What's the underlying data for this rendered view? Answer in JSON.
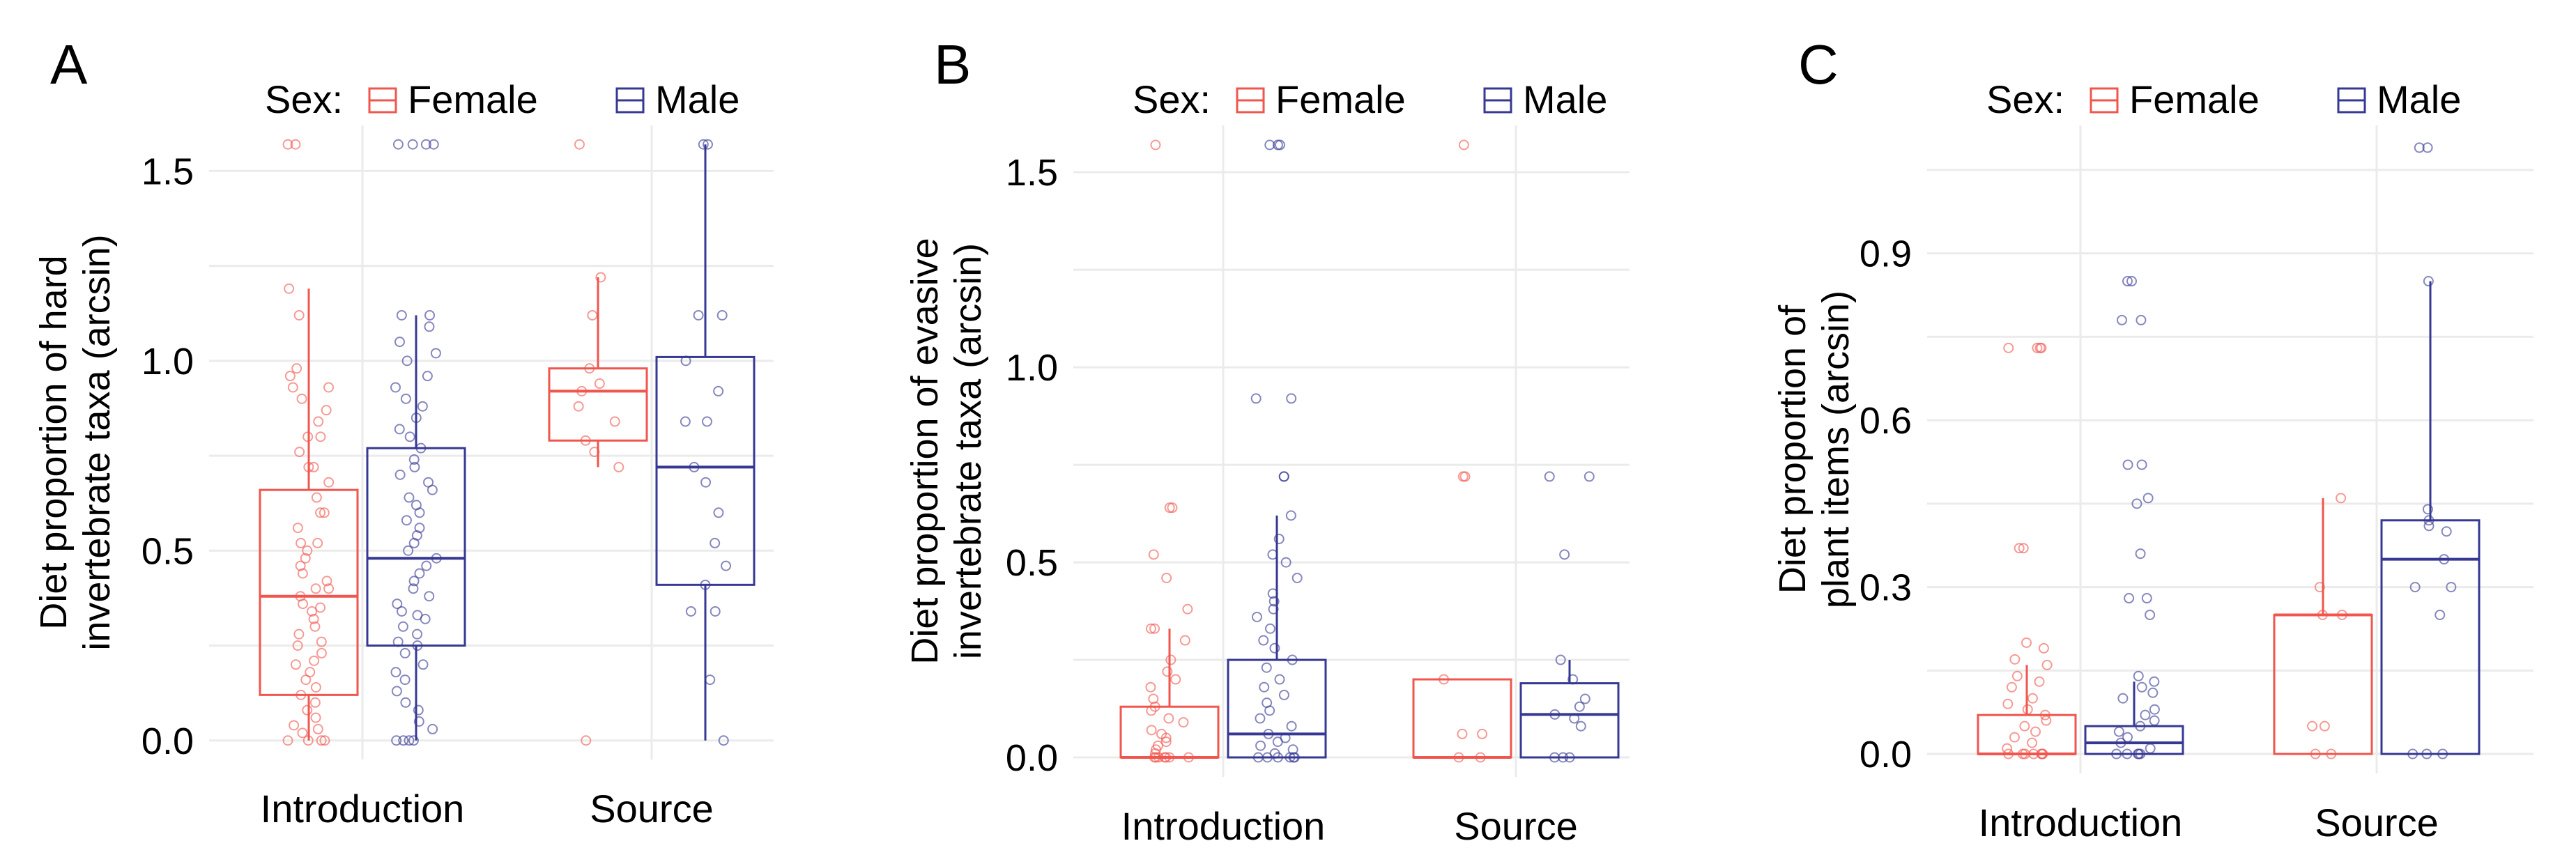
{
  "colors": {
    "female": "#f0564e",
    "male": "#363893",
    "grid": "#ebebeb"
  },
  "chart_data": [
    {
      "panel": "A",
      "type": "box",
      "ylabel_lines": [
        "Diet proportion of hard",
        "invertebrate taxa (arcsin)"
      ],
      "legend": {
        "title": "Sex:",
        "entries": [
          "Female",
          "Male"
        ],
        "position": "top"
      },
      "categories": [
        "Introduction",
        "Source"
      ],
      "ylim": [
        -0.05,
        1.62
      ],
      "yticks": [
        0.0,
        0.5,
        1.0,
        1.5
      ],
      "ytick_labels": [
        "0.0",
        "0.5",
        "1.0",
        "1.5"
      ],
      "boxes": [
        {
          "category": "Introduction",
          "sex": "Female",
          "q1": 0.12,
          "median": 0.38,
          "q3": 0.66,
          "whisker_low": 0.0,
          "whisker_high": 1.19,
          "points": [
            1.57,
            1.57,
            1.19,
            1.12,
            0.98,
            0.96,
            0.93,
            0.93,
            0.9,
            0.87,
            0.84,
            0.8,
            0.8,
            0.76,
            0.72,
            0.72,
            0.68,
            0.64,
            0.6,
            0.6,
            0.56,
            0.52,
            0.52,
            0.5,
            0.48,
            0.46,
            0.44,
            0.42,
            0.4,
            0.4,
            0.38,
            0.36,
            0.35,
            0.34,
            0.32,
            0.3,
            0.28,
            0.26,
            0.25,
            0.23,
            0.21,
            0.2,
            0.18,
            0.16,
            0.14,
            0.12,
            0.1,
            0.08,
            0.06,
            0.04,
            0.03,
            0.02,
            0.0,
            0.0,
            0.0,
            0.0
          ]
        },
        {
          "category": "Introduction",
          "sex": "Male",
          "q1": 0.25,
          "median": 0.48,
          "q3": 0.77,
          "whisker_low": 0.0,
          "whisker_high": 1.12,
          "points": [
            1.57,
            1.57,
            1.57,
            1.57,
            1.12,
            1.12,
            1.09,
            1.05,
            1.02,
            1.0,
            0.96,
            0.93,
            0.9,
            0.88,
            0.85,
            0.82,
            0.8,
            0.77,
            0.74,
            0.72,
            0.7,
            0.68,
            0.66,
            0.64,
            0.62,
            0.6,
            0.58,
            0.56,
            0.54,
            0.52,
            0.5,
            0.48,
            0.46,
            0.44,
            0.42,
            0.4,
            0.38,
            0.36,
            0.34,
            0.33,
            0.32,
            0.3,
            0.28,
            0.26,
            0.25,
            0.23,
            0.2,
            0.18,
            0.16,
            0.13,
            0.1,
            0.08,
            0.05,
            0.03,
            0.0,
            0.0,
            0.0,
            0.0
          ]
        },
        {
          "category": "Source",
          "sex": "Female",
          "q1": 0.79,
          "median": 0.92,
          "q3": 0.98,
          "whisker_low": 0.72,
          "whisker_high": 1.22,
          "points": [
            1.57,
            1.22,
            1.12,
            0.98,
            0.94,
            0.92,
            0.88,
            0.84,
            0.79,
            0.76,
            0.72,
            0.0
          ]
        },
        {
          "category": "Source",
          "sex": "Male",
          "q1": 0.41,
          "median": 0.72,
          "q3": 1.01,
          "whisker_low": 0.0,
          "whisker_high": 1.57,
          "points": [
            1.57,
            1.57,
            1.12,
            1.12,
            1.0,
            0.92,
            0.84,
            0.84,
            0.72,
            0.68,
            0.6,
            0.52,
            0.46,
            0.41,
            0.34,
            0.34,
            0.16,
            0.0
          ]
        }
      ]
    },
    {
      "panel": "B",
      "type": "box",
      "ylabel_lines": [
        "Diet proportion of evasive",
        "invertebrate taxa (arcsin)"
      ],
      "legend": {
        "title": "Sex:",
        "entries": [
          "Female",
          "Male"
        ],
        "position": "top"
      },
      "categories": [
        "Introduction",
        "Source"
      ],
      "ylim": [
        -0.05,
        1.62
      ],
      "yticks": [
        0.0,
        0.5,
        1.0,
        1.5
      ],
      "ytick_labels": [
        "0.0",
        "0.5",
        "1.0",
        "1.5"
      ],
      "boxes": [
        {
          "category": "Introduction",
          "sex": "Female",
          "q1": 0.0,
          "median": 0.0,
          "q3": 0.13,
          "whisker_low": 0.0,
          "whisker_high": 0.33,
          "points": [
            1.57,
            0.64,
            0.64,
            0.52,
            0.46,
            0.38,
            0.33,
            0.33,
            0.3,
            0.25,
            0.22,
            0.2,
            0.18,
            0.15,
            0.13,
            0.12,
            0.1,
            0.09,
            0.07,
            0.06,
            0.05,
            0.04,
            0.03,
            0.02,
            0.01,
            0.0,
            0.0,
            0.0,
            0.0,
            0.0,
            0.0,
            0.0
          ]
        },
        {
          "category": "Introduction",
          "sex": "Male",
          "q1": 0.0,
          "median": 0.06,
          "q3": 0.25,
          "whisker_low": 0.0,
          "whisker_high": 0.62,
          "points": [
            1.57,
            1.57,
            1.57,
            0.92,
            0.92,
            0.72,
            0.72,
            0.62,
            0.56,
            0.52,
            0.5,
            0.46,
            0.42,
            0.4,
            0.38,
            0.36,
            0.33,
            0.3,
            0.28,
            0.25,
            0.23,
            0.2,
            0.18,
            0.16,
            0.14,
            0.12,
            0.1,
            0.08,
            0.06,
            0.05,
            0.04,
            0.03,
            0.02,
            0.01,
            0.0,
            0.0,
            0.0,
            0.0,
            0.0,
            0.0
          ]
        },
        {
          "category": "Source",
          "sex": "Female",
          "q1": 0.0,
          "median": 0.0,
          "q3": 0.2,
          "whisker_low": 0.0,
          "whisker_high": 0.2,
          "points": [
            1.57,
            0.72,
            0.72,
            0.2,
            0.06,
            0.06,
            0.0,
            0.0
          ]
        },
        {
          "category": "Source",
          "sex": "Male",
          "q1": 0.0,
          "median": 0.11,
          "q3": 0.19,
          "whisker_low": 0.0,
          "whisker_high": 0.25,
          "points": [
            0.72,
            0.72,
            0.52,
            0.25,
            0.2,
            0.15,
            0.13,
            0.11,
            0.1,
            0.08,
            0.0,
            0.0,
            0.0
          ]
        }
      ]
    },
    {
      "panel": "C",
      "type": "box",
      "ylabel_lines": [
        "Diet proportion of",
        "plant items (arcsin)"
      ],
      "legend": {
        "title": "Sex:",
        "entries": [
          "Female",
          "Male"
        ],
        "position": "top"
      },
      "categories": [
        "Introduction",
        "Source"
      ],
      "ylim": [
        -0.035,
        1.13
      ],
      "yticks": [
        0.0,
        0.3,
        0.6,
        0.9
      ],
      "ytick_labels": [
        "0.0",
        "0.3",
        "0.6",
        "0.9"
      ],
      "boxes": [
        {
          "category": "Introduction",
          "sex": "Female",
          "q1": 0.0,
          "median": 0.0,
          "q3": 0.07,
          "whisker_low": 0.0,
          "whisker_high": 0.16,
          "points": [
            0.73,
            0.73,
            0.73,
            0.73,
            0.37,
            0.37,
            0.2,
            0.19,
            0.17,
            0.16,
            0.14,
            0.13,
            0.12,
            0.1,
            0.09,
            0.08,
            0.07,
            0.06,
            0.05,
            0.04,
            0.03,
            0.02,
            0.01,
            0.0,
            0.0,
            0.0,
            0.0,
            0.0,
            0.0,
            0.0
          ]
        },
        {
          "category": "Introduction",
          "sex": "Male",
          "q1": 0.0,
          "median": 0.02,
          "q3": 0.05,
          "whisker_low": 0.0,
          "whisker_high": 0.13,
          "points": [
            0.85,
            0.85,
            0.78,
            0.78,
            0.52,
            0.52,
            0.46,
            0.45,
            0.36,
            0.28,
            0.28,
            0.25,
            0.14,
            0.13,
            0.12,
            0.11,
            0.1,
            0.08,
            0.07,
            0.06,
            0.05,
            0.04,
            0.03,
            0.02,
            0.01,
            0.0,
            0.0,
            0.0,
            0.0,
            0.0
          ]
        },
        {
          "category": "Source",
          "sex": "Female",
          "q1": 0.0,
          "median": 0.25,
          "q3": 0.25,
          "whisker_low": 0.0,
          "whisker_high": 0.46,
          "points": [
            0.46,
            0.3,
            0.25,
            0.25,
            0.05,
            0.05,
            0.0,
            0.0
          ]
        },
        {
          "category": "Source",
          "sex": "Male",
          "q1": 0.0,
          "median": 0.35,
          "q3": 0.42,
          "whisker_low": 0.0,
          "whisker_high": 0.85,
          "points": [
            1.09,
            1.09,
            0.85,
            0.44,
            0.42,
            0.41,
            0.4,
            0.35,
            0.3,
            0.3,
            0.25,
            0.0,
            0.0,
            0.0
          ]
        }
      ]
    }
  ],
  "panel_labels": [
    "A",
    "B",
    "C"
  ]
}
